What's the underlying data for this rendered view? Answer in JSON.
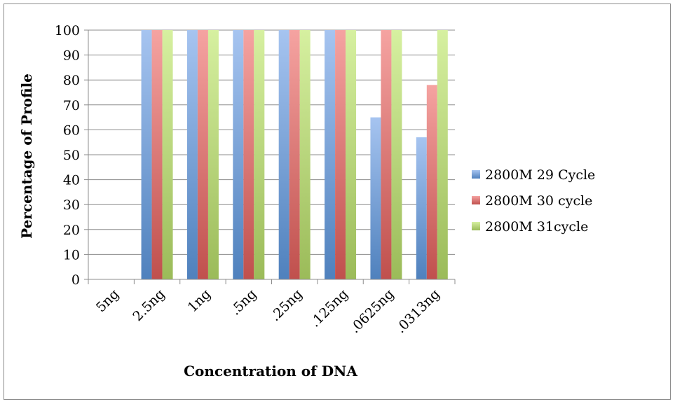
{
  "chart_data": {
    "type": "bar",
    "title": "",
    "xlabel": "Concentration of DNA",
    "ylabel": "Percentage of Profile",
    "ylim": [
      0,
      100
    ],
    "ytick_step": 10,
    "grid": "horizontal",
    "legend_position": "right",
    "categories": [
      "5ng",
      "2.5ng",
      "1ng",
      ".5ng",
      ".25ng",
      ".125ng",
      ".0625ng",
      ".0313ng"
    ],
    "series": [
      {
        "name": "2800M 29 Cycle",
        "color": "#4f81bd",
        "light": "#a6c4f0",
        "values": [
          0,
          100,
          100,
          100,
          100,
          100,
          65,
          57
        ]
      },
      {
        "name": "2800M 30 cycle",
        "color": "#c0504d",
        "light": "#f5a3a1",
        "values": [
          0,
          100,
          100,
          100,
          100,
          100,
          100,
          78
        ]
      },
      {
        "name": "2800M 31cycle",
        "color": "#9bbb59",
        "light": "#d6f0a0",
        "values": [
          0,
          100,
          100,
          100,
          100,
          100,
          100,
          100
        ]
      }
    ]
  }
}
